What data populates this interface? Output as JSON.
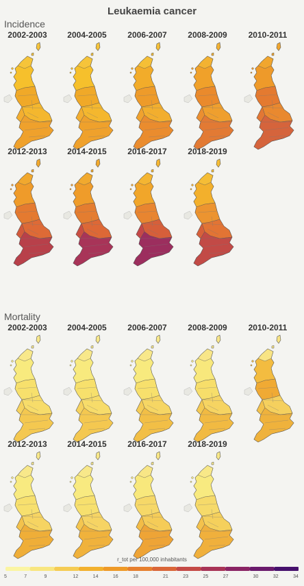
{
  "title": "Leukaemia cancer",
  "sections": [
    {
      "label": "Incidence",
      "maps": [
        {
          "period": "2002-2003",
          "colors": [
            "#f6c02c",
            "#f0a928",
            "#f6c43a",
            "#f4b72e",
            "#f3ae30",
            "#efa12c"
          ]
        },
        {
          "period": "2004-2005",
          "colors": [
            "#f6c02c",
            "#f0a928",
            "#f6c43a",
            "#f4b72e",
            "#f3ae30",
            "#efa12c"
          ]
        },
        {
          "period": "2006-2007",
          "colors": [
            "#f2ac2a",
            "#ee9b2a",
            "#f5bf36",
            "#f2ae2e",
            "#f0a22e",
            "#ea8c2e"
          ]
        },
        {
          "period": "2008-2009",
          "colors": [
            "#f0a12a",
            "#ea8a2c",
            "#f3b232",
            "#ef9f2e",
            "#eb8f30",
            "#e27a34"
          ]
        },
        {
          "period": "2010-2011",
          "colors": [
            "#ee9a2a",
            "#e47a30",
            "#f1a62e",
            "#e9892f",
            "#e27734",
            "#d5643c"
          ]
        },
        {
          "period": "2012-2013",
          "colors": [
            "#ef9b2a",
            "#e47a30",
            "#f1a82e",
            "#de6a36",
            "#d25a3c",
            "#b8404a"
          ]
        },
        {
          "period": "2014-2015",
          "colors": [
            "#ef9c2a",
            "#e47d30",
            "#f1a92e",
            "#dd6836",
            "#c94e42",
            "#a83458"
          ]
        },
        {
          "period": "2016-2017",
          "colors": [
            "#f1a62a",
            "#e88530",
            "#f4b532",
            "#d65f3a",
            "#c44848",
            "#9c2e5e"
          ]
        },
        {
          "period": "2018-2019",
          "colors": [
            "#f3b02c",
            "#ec9430",
            "#f5bd36",
            "#e27434",
            "#d6603a",
            "#c24a46"
          ]
        }
      ]
    },
    {
      "label": "Mortality",
      "maps": [
        {
          "period": "2002-2003",
          "colors": [
            "#f8ea7e",
            "#f7e06c",
            "#f8e88a",
            "#f7dc6a",
            "#f6d25e",
            "#f4c850"
          ]
        },
        {
          "period": "2004-2005",
          "colors": [
            "#f8ea7e",
            "#f7e06c",
            "#f8e88a",
            "#f7dc6a",
            "#f6d25e",
            "#f4c850"
          ]
        },
        {
          "period": "2006-2007",
          "colors": [
            "#f8ea7e",
            "#f7e06c",
            "#f8e88a",
            "#f6d664",
            "#f5cc56",
            "#f2bf46"
          ]
        },
        {
          "period": "2008-2009",
          "colors": [
            "#f8e87c",
            "#f7de6a",
            "#f8e688",
            "#f6d462",
            "#f4c952",
            "#f1ba42"
          ]
        },
        {
          "period": "2010-2011",
          "colors": [
            "#f3bc40",
            "#f0aa34",
            "#f8e484",
            "#f5d05e",
            "#f3c24c",
            "#efb23c"
          ]
        },
        {
          "period": "2012-2013",
          "colors": [
            "#f8ea80",
            "#f7e06e",
            "#f8e88a",
            "#f6d462",
            "#f3c24c",
            "#efae38"
          ]
        },
        {
          "period": "2014-2015",
          "colors": [
            "#f8ea80",
            "#f7e06e",
            "#f8e88a",
            "#f6d464",
            "#f4c650",
            "#f0b23c"
          ]
        },
        {
          "period": "2016-2017",
          "colors": [
            "#f8e87c",
            "#f6d868",
            "#f8e686",
            "#f5cc58",
            "#f3bc46",
            "#eea436"
          ]
        },
        {
          "period": "2018-2019",
          "colors": [
            "#f8ea80",
            "#f6da6a",
            "#f8e888",
            "#f5d05c",
            "#f4c24c",
            "#f0b03c"
          ]
        }
      ]
    }
  ],
  "legend": {
    "caption": "r_tot per 100,000 inhabitants",
    "ticks": [
      5,
      7,
      9,
      12,
      14,
      16,
      18,
      21,
      23,
      25,
      27,
      30,
      32,
      34
    ],
    "min": 5,
    "max": 34,
    "colors": [
      "#fbf5a2",
      "#f8e680",
      "#f5cc54",
      "#f2b12e",
      "#ee9a28",
      "#e6802e",
      "#da6638",
      "#c44a46",
      "#a83456",
      "#8a2464",
      "#6a1a6c",
      "#46106c"
    ]
  }
}
